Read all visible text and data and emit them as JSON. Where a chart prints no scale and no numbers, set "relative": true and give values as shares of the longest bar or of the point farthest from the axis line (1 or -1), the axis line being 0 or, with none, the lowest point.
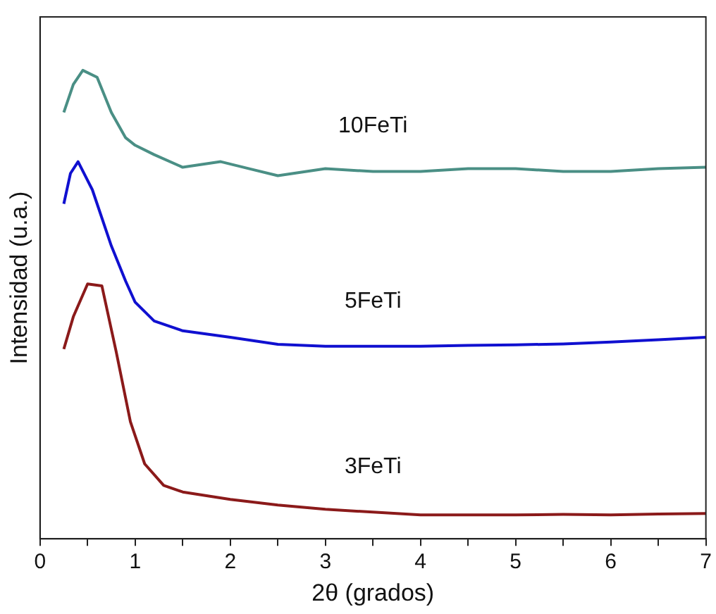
{
  "chart_data": {
    "type": "line",
    "xlabel": "2θ (grados)",
    "ylabel": "Intensidad (u.a.)",
    "relative": true,
    "tick_labels": "x",
    "grid": false,
    "legend": false,
    "marker": "none",
    "line_style": "solid",
    "xlim": [
      0,
      7
    ],
    "xticks": [
      0,
      {
        "value": 0.5,
        "label": null
      },
      1,
      {
        "value": 1.5,
        "label": null
      },
      2,
      {
        "value": 2.5,
        "label": null
      },
      3,
      {
        "value": 3.5,
        "label": null
      },
      4,
      {
        "value": 4.5,
        "label": null
      },
      5,
      {
        "value": 5.5,
        "label": null
      },
      6,
      {
        "value": 6.5,
        "label": null
      },
      7
    ],
    "series": [
      {
        "name": "10FeTi",
        "color": "#4a8f85",
        "x": [
          0.25,
          0.35,
          0.45,
          0.6,
          0.75,
          0.9,
          1.0,
          1.2,
          1.5,
          1.9,
          2.2,
          2.5,
          3,
          3.5,
          4,
          4.5,
          5,
          5.5,
          6,
          6.5,
          7
        ],
        "values": [
          0.91,
          0.97,
          1.0,
          0.985,
          0.91,
          0.856,
          0.84,
          0.82,
          0.793,
          0.805,
          0.79,
          0.775,
          0.79,
          0.784,
          0.784,
          0.79,
          0.79,
          0.784,
          0.784,
          0.79,
          0.793
        ]
      },
      {
        "name": "5FeTi",
        "color": "#1010d0",
        "x": [
          0.25,
          0.32,
          0.4,
          0.55,
          0.75,
          0.9,
          1.0,
          1.2,
          1.5,
          2,
          2.5,
          3,
          3.5,
          4,
          4.5,
          5,
          5.5,
          6,
          6.5,
          7
        ],
        "values": [
          0.715,
          0.78,
          0.805,
          0.745,
          0.625,
          0.55,
          0.505,
          0.465,
          0.444,
          0.43,
          0.415,
          0.411,
          0.411,
          0.411,
          0.413,
          0.414,
          0.416,
          0.42,
          0.425,
          0.43
        ]
      },
      {
        "name": "3FeTi",
        "color": "#8b1a1a",
        "x": [
          0.25,
          0.35,
          0.5,
          0.65,
          0.8,
          0.95,
          1.1,
          1.3,
          1.5,
          2,
          2.5,
          3,
          3.5,
          4,
          4.5,
          5,
          5.5,
          6,
          6.5,
          7
        ],
        "values": [
          0.405,
          0.474,
          0.544,
          0.54,
          0.4,
          0.25,
          0.16,
          0.114,
          0.1,
          0.084,
          0.072,
          0.063,
          0.057,
          0.051,
          0.051,
          0.051,
          0.052,
          0.051,
          0.053,
          0.054
        ]
      }
    ]
  }
}
